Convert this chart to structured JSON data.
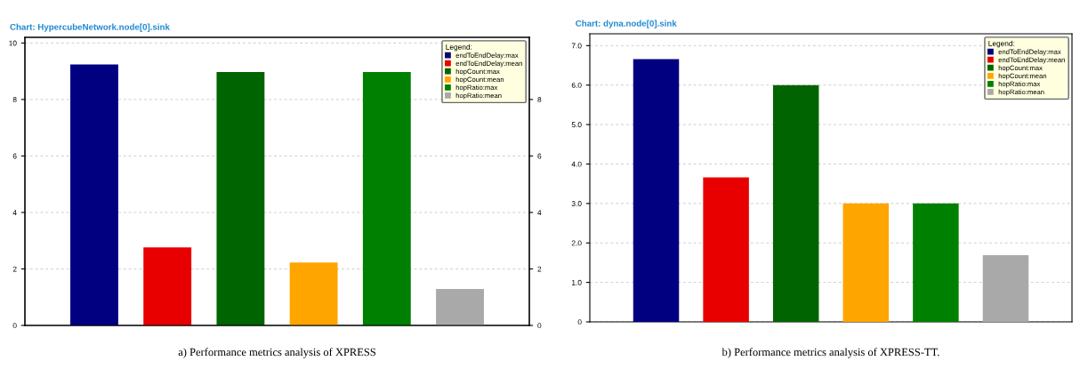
{
  "chart_data": [
    {
      "type": "bar",
      "title": "Chart: HypercubeNetwork.node[0].sink",
      "legend_title": "Legend:",
      "categories": [
        null
      ],
      "ylim": [
        0,
        10.2
      ],
      "yticks": [
        0,
        2,
        4,
        6,
        8,
        10
      ],
      "y2lim": [
        0,
        10.2
      ],
      "y2ticks": [
        0,
        2,
        4,
        6,
        8
      ],
      "grid": "y",
      "legend": "top right",
      "annotations": [
        "a) Performance metrics analysis of XPRESS"
      ],
      "series": [
        {
          "name": "endToEndDelay:max",
          "color": "#000080",
          "values": [
            9.24
          ]
        },
        {
          "name": "endToEndDelay:mean",
          "color": "#e80000",
          "values": [
            2.76
          ]
        },
        {
          "name": "hopCount:max",
          "color": "#006400",
          "values": [
            8.97
          ]
        },
        {
          "name": "hopCount:mean",
          "color": "#ffa500",
          "values": [
            2.23
          ]
        },
        {
          "name": "hopRatio:max",
          "color": "#008000",
          "values": [
            8.97
          ]
        },
        {
          "name": "hopRatio:mean",
          "color": "#a9a9a9",
          "values": [
            1.29
          ]
        }
      ]
    },
    {
      "type": "bar",
      "title": "Chart: dyna.node[0].sink",
      "legend_title": "Legend:",
      "categories": [
        null
      ],
      "ylim": [
        0,
        7.3
      ],
      "yticks": [
        0,
        {
          "value": 1,
          "label": "1.0"
        },
        {
          "value": 2,
          "label": "2.0"
        },
        {
          "value": 3,
          "label": "3.0"
        },
        {
          "value": 4,
          "label": "4.0"
        },
        {
          "value": 5,
          "label": "5.0"
        },
        {
          "value": 6,
          "label": "6.0"
        },
        {
          "value": 7,
          "label": "7.0"
        }
      ],
      "grid": "y",
      "legend": "top right",
      "annotations": [
        "b) Performance metrics analysis of XPRESS-TT."
      ],
      "series": [
        {
          "name": "endToEndDelay:max",
          "color": "#000080",
          "values": [
            6.66
          ]
        },
        {
          "name": "endToEndDelay:mean",
          "color": "#e80000",
          "values": [
            3.66
          ]
        },
        {
          "name": "hopCount:max",
          "color": "#006400",
          "values": [
            6.0
          ]
        },
        {
          "name": "hopCount:mean",
          "color": "#ffa500",
          "values": [
            3.0
          ]
        },
        {
          "name": "hopRatio:max",
          "color": "#008000",
          "values": [
            3.0
          ]
        },
        {
          "name": "hopRatio:mean",
          "color": "#a9a9a9",
          "values": [
            1.69
          ]
        }
      ]
    }
  ]
}
